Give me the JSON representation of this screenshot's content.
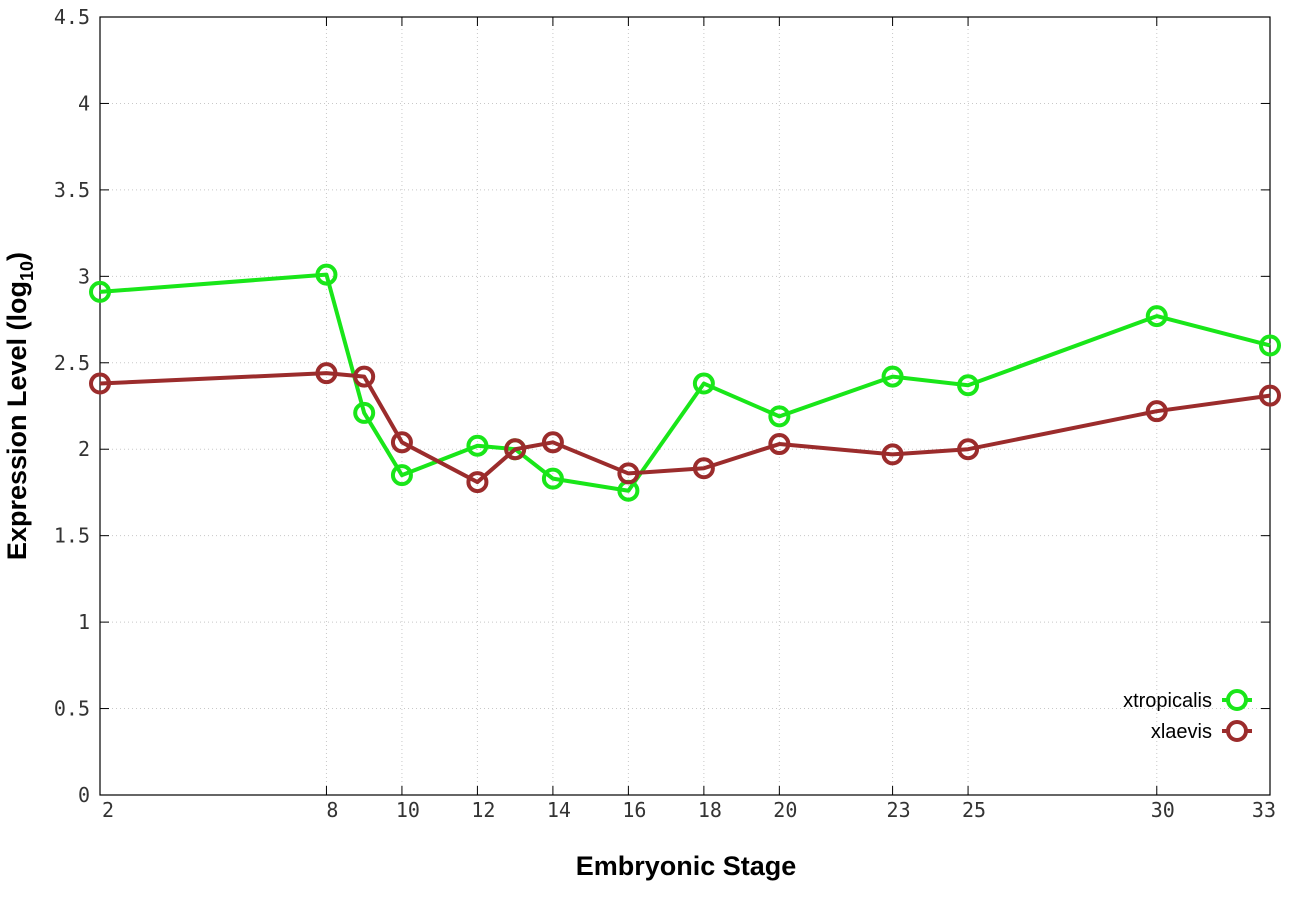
{
  "chart_data": {
    "type": "line",
    "title": "",
    "xlabel": "Embryonic Stage",
    "ylabel": {
      "text": "Expression Level (log",
      "subscript": "10",
      "suffix": ")"
    },
    "x_ticks": [
      "2",
      "8",
      "10",
      "12",
      "14",
      "16",
      "18",
      "20",
      "23",
      "25",
      "30",
      "33"
    ],
    "y_ticks": [
      "0",
      "0.5",
      "1",
      "1.5",
      "2",
      "2.5",
      "3",
      "3.5",
      "4",
      "4.5"
    ],
    "xlim": [
      2,
      33
    ],
    "ylim": [
      0,
      4.5
    ],
    "grid": true,
    "legend_position": "bottom-right",
    "series": [
      {
        "name": "xtropicalis",
        "color": "#19e619",
        "points": [
          [
            2,
            2.91
          ],
          [
            8,
            3.01
          ],
          [
            9,
            2.21
          ],
          [
            10,
            1.85
          ],
          [
            12,
            2.02
          ],
          [
            13,
            2.0
          ],
          [
            14,
            1.83
          ],
          [
            16,
            1.76
          ],
          [
            18,
            2.38
          ],
          [
            20,
            2.19
          ],
          [
            23,
            2.42
          ],
          [
            25,
            2.37
          ],
          [
            30,
            2.77
          ],
          [
            33,
            2.6
          ]
        ]
      },
      {
        "name": "xlaevis",
        "color": "#9b2c2c",
        "points": [
          [
            2,
            2.38
          ],
          [
            8,
            2.44
          ],
          [
            9,
            2.42
          ],
          [
            10,
            2.04
          ],
          [
            12,
            1.81
          ],
          [
            13,
            2.0
          ],
          [
            14,
            2.04
          ],
          [
            16,
            1.86
          ],
          [
            18,
            1.89
          ],
          [
            20,
            2.03
          ],
          [
            23,
            1.97
          ],
          [
            25,
            2.0
          ],
          [
            30,
            2.22
          ],
          [
            33,
            2.31
          ]
        ]
      }
    ]
  }
}
